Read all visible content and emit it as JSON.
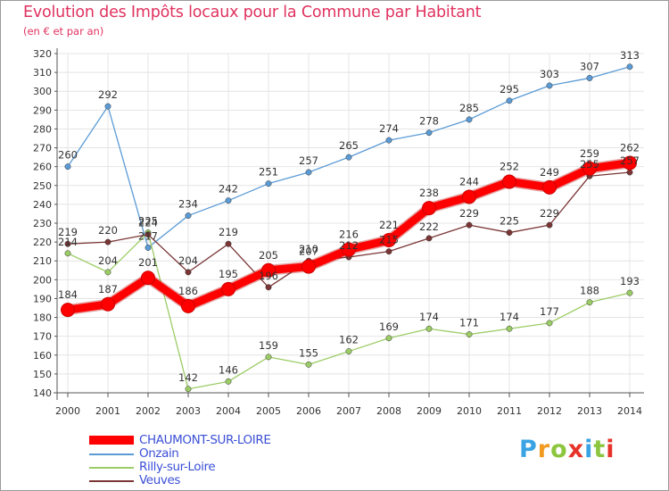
{
  "header": {
    "title": "Evolution des Impôts locaux pour la Commune par Habitant",
    "subtitle": "(en € et par an)"
  },
  "logo": {
    "letters": [
      "P",
      "r",
      "o",
      "x",
      "i",
      "t",
      "i"
    ],
    "colors": [
      "#3aa3e3",
      "#f29a1f",
      "#8cc63f",
      "#e6332a",
      "#3aa3e3",
      "#8cc63f",
      "#e6332a"
    ]
  },
  "chart_data": {
    "type": "line",
    "title": "Evolution des Impôts locaux pour la Commune par Habitant",
    "subtitle": "(en € et par an)",
    "xlabel": "",
    "ylabel": "",
    "ylim": [
      140,
      320
    ],
    "ytick_step": 10,
    "grid": true,
    "legend_position": "bottom-left",
    "x": [
      "2000",
      "2001",
      "2002",
      "2003",
      "2004",
      "2005",
      "2006",
      "2007",
      "2008",
      "2009",
      "2010",
      "2011",
      "2012",
      "2013",
      "2014"
    ],
    "series": [
      {
        "name": "CHAUMONT-SUR-LOIRE",
        "color": "#ff0000",
        "main": true,
        "values": [
          184,
          187,
          201,
          186,
          195,
          205,
          207,
          216,
          221,
          238,
          244,
          252,
          249,
          259,
          262
        ],
        "labels": [
          "184",
          "187",
          "201",
          "186",
          "195",
          "205",
          "207",
          "216",
          "221",
          "238",
          "244",
          "252",
          "249",
          "259",
          "262"
        ]
      },
      {
        "name": "Onzain",
        "color": "#5b9bd5",
        "values": [
          260,
          292,
          217,
          234,
          242,
          251,
          257,
          265,
          274,
          278,
          285,
          295,
          303,
          307,
          313
        ],
        "labels": [
          "260",
          "292",
          "217",
          "234",
          "242",
          "251",
          "257",
          "265",
          "274",
          "278",
          "285",
          "295",
          "303",
          "307",
          "313"
        ]
      },
      {
        "name": "Rilly-sur-Loire",
        "color": "#9ccc65",
        "values": [
          214,
          204,
          225,
          142,
          146,
          159,
          155,
          162,
          169,
          174,
          171,
          174,
          177,
          188,
          193
        ],
        "labels": [
          "214",
          "204",
          "225",
          "142",
          "146",
          "159",
          "155",
          "162",
          "169",
          "174",
          "171",
          "174",
          "177",
          "188",
          "193"
        ]
      },
      {
        "name": "Veuves",
        "color": "#7b3535",
        "values": [
          219,
          220,
          224,
          204,
          219,
          196,
          210,
          212,
          215,
          222,
          229,
          225,
          229,
          255,
          257
        ],
        "labels": [
          "219",
          "220",
          "224",
          "204",
          "219",
          "196",
          "210",
          "212",
          "215",
          "222",
          "229",
          "225",
          "229",
          "255",
          "257"
        ]
      }
    ]
  }
}
